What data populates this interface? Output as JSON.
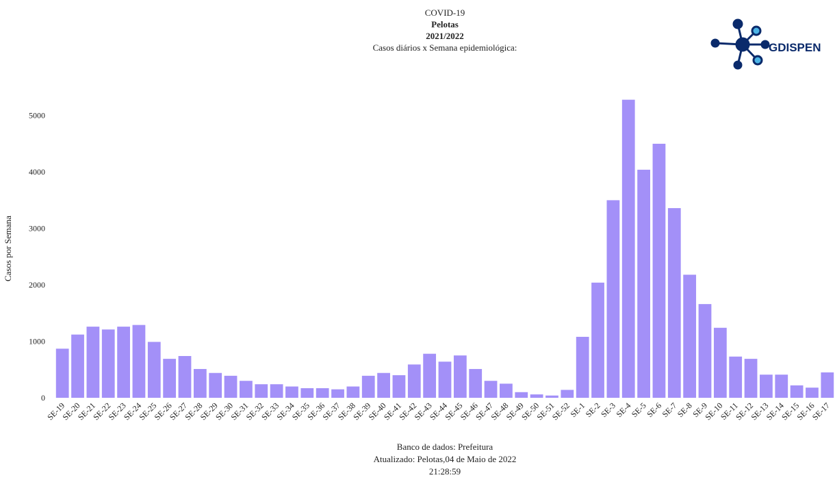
{
  "chart_data": {
    "type": "bar",
    "title_lines": [
      "COVID-19",
      "Pelotas",
      "2021/2022",
      "Casos diários x Semana epidemiológica:"
    ],
    "y_label": "Casos por Semana",
    "categories": [
      "SE-19",
      "SE-20",
      "SE-21",
      "SE-22",
      "SE-23",
      "SE-24",
      "SE-25",
      "SE-26",
      "SE-27",
      "SE-28",
      "SE-29",
      "SE-30",
      "SE-31",
      "SE-32",
      "SE-33",
      "SE-34",
      "SE-35",
      "SE-36",
      "SE-37",
      "SE-38",
      "SE-39",
      "SE-40",
      "SE-41",
      "SE-42",
      "SE-43",
      "SE-44",
      "SE-45",
      "SE-46",
      "SE-47",
      "SE-48",
      "SE-49",
      "SE-50",
      "SE-51",
      "SE-52",
      "SE-1",
      "SE-2",
      "SE-3",
      "SE-4",
      "SE-5",
      "SE-6",
      "SE-7",
      "SE-8",
      "SE-9",
      "SE-10",
      "SE-11",
      "SE-12",
      "SE-13",
      "SE-14",
      "SE-15",
      "SE-16",
      "SE-17"
    ],
    "values": [
      870,
      1120,
      1260,
      1210,
      1260,
      1290,
      990,
      690,
      740,
      510,
      440,
      390,
      300,
      240,
      240,
      200,
      170,
      170,
      150,
      200,
      390,
      440,
      400,
      590,
      780,
      640,
      750,
      510,
      300,
      250,
      100,
      60,
      40,
      140,
      1080,
      2040,
      3500,
      5280,
      4040,
      4500,
      3360,
      2180,
      1660,
      1240,
      730,
      690,
      410,
      410,
      220,
      180,
      450
    ],
    "color": "#a390f8",
    "ylim": [
      0,
      5300
    ],
    "yticks": [
      0,
      1000,
      2000,
      3000,
      4000,
      5000
    ],
    "grid": false,
    "footer_lines": [
      "Banco de dados: Prefeitura",
      "Atualizado: Pelotas,04 de Maio de 2022",
      "21:28:59"
    ]
  },
  "logo": {
    "text": "GDISPEN"
  }
}
